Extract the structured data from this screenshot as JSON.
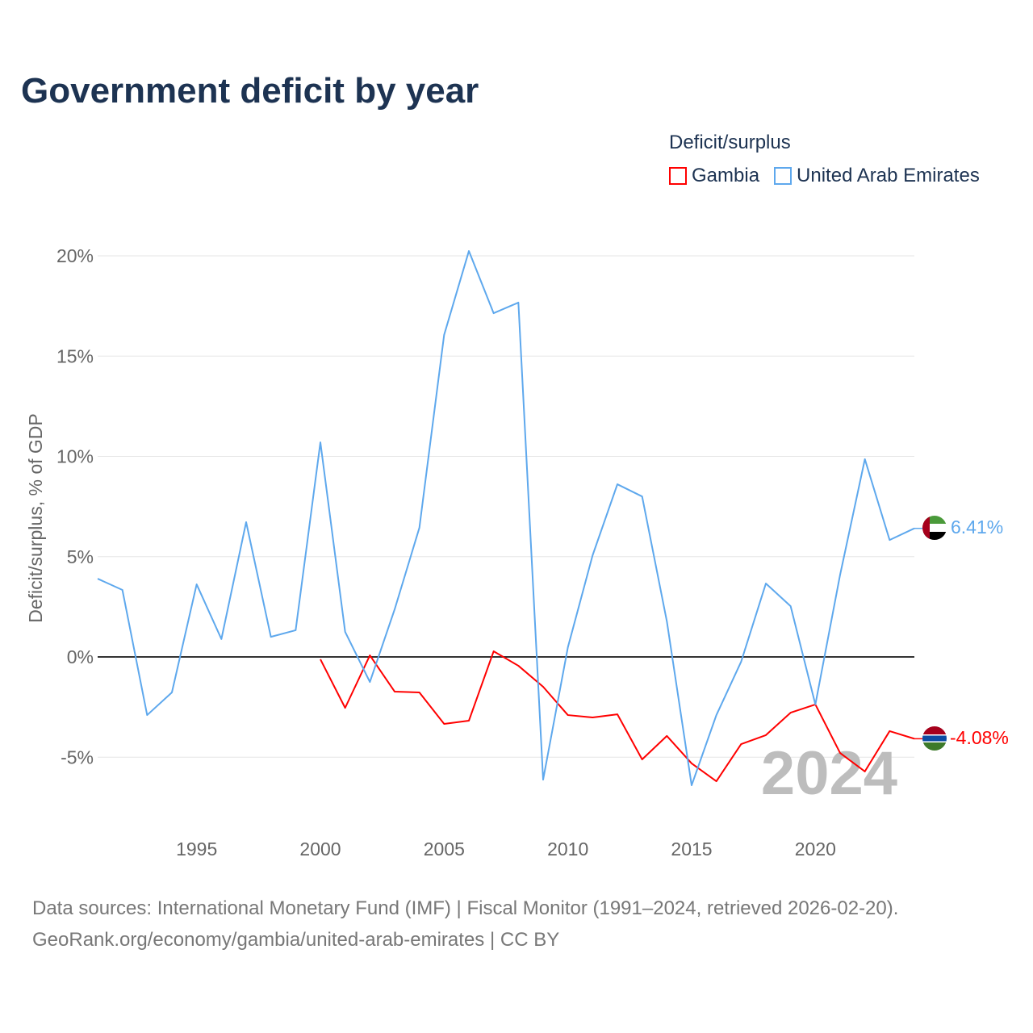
{
  "chart_data": {
    "type": "line",
    "title": "Government deficit by year",
    "ylabel": "Deficit/surplus, % of GDP",
    "xlabel": "",
    "ylim": [
      -7.5,
      21
    ],
    "xlim": [
      1991,
      2024
    ],
    "yticks": [
      -5,
      0,
      5,
      10,
      15,
      20
    ],
    "ytick_labels": [
      "-5%",
      "0%",
      "5%",
      "10%",
      "15%",
      "20%"
    ],
    "xticks": [
      1995,
      2000,
      2005,
      2010,
      2015,
      2020
    ],
    "xtick_labels": [
      "1995",
      "2000",
      "2005",
      "2010",
      "2015",
      "2020"
    ],
    "legend_title": "Deficit/surplus",
    "legend_placement": "top-right",
    "year_watermark": "2024",
    "series": [
      {
        "name": "Gambia",
        "color": "#ff0000",
        "end_label": "-4.08%",
        "x": [
          2000,
          2001,
          2002,
          2003,
          2004,
          2005,
          2006,
          2007,
          2008,
          2009,
          2010,
          2011,
          2012,
          2013,
          2014,
          2015,
          2016,
          2017,
          2018,
          2019,
          2020,
          2021,
          2022,
          2023,
          2024
        ],
        "values": [
          -0.12,
          -2.54,
          0.08,
          -1.73,
          -1.77,
          -3.34,
          -3.18,
          0.28,
          -0.44,
          -1.49,
          -2.9,
          -3.02,
          -2.86,
          -5.11,
          -3.94,
          -5.31,
          -6.2,
          -4.35,
          -3.9,
          -2.78,
          -2.37,
          -4.79,
          -5.71,
          -3.7,
          -4.08
        ]
      },
      {
        "name": "United Arab Emirates",
        "color": "#5ea8ed",
        "end_label": "6.41%",
        "x": [
          1991,
          1992,
          1993,
          1994,
          1995,
          1996,
          1997,
          1998,
          1999,
          2000,
          2001,
          2002,
          2003,
          2004,
          2005,
          2006,
          2007,
          2008,
          2009,
          2010,
          2011,
          2012,
          2013,
          2014,
          2015,
          2016,
          2017,
          2018,
          2019,
          2020,
          2021,
          2022,
          2023,
          2024
        ],
        "values": [
          3.9,
          3.34,
          -2.9,
          -1.77,
          3.62,
          0.89,
          6.72,
          1.0,
          1.33,
          10.7,
          1.25,
          -1.25,
          2.37,
          6.44,
          16.06,
          20.24,
          17.14,
          17.67,
          -6.12,
          0.48,
          5.07,
          8.61,
          8.0,
          1.77,
          -6.4,
          -2.9,
          -0.24,
          3.66,
          2.53,
          -2.37,
          4.1,
          9.86,
          5.83,
          6.41
        ]
      }
    ]
  },
  "source": {
    "line1": "Data sources: International Monetary Fund (IMF) | Fiscal Monitor (1991–2024, retrieved 2026-02-20).",
    "line2": "GeoRank.org/economy/gambia/united-arab-emirates | CC BY"
  }
}
